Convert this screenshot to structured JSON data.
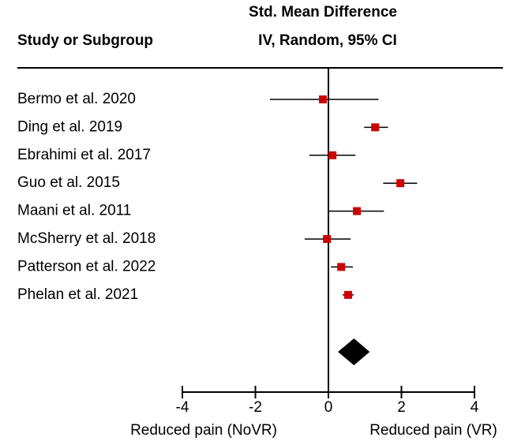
{
  "chart_data": {
    "type": "forest",
    "header_left": "Study or Subgroup",
    "header_right_1": "Std. Mean Difference",
    "header_right_2": "IV, Random, 95% CI",
    "categories": [
      "Bermo et al. 2020",
      "Ding et al. 2019",
      "Ebrahimi et al. 2017",
      "Guo et al. 2015",
      "Maani et al. 2011",
      "McSherry et al. 2018",
      "Patterson et al. 2022",
      "Phelan et al. 2021"
    ],
    "values": [
      -0.15,
      1.28,
      0.11,
      1.97,
      0.78,
      -0.04,
      0.35,
      0.54
    ],
    "ci_low": [
      -1.6,
      0.98,
      -0.52,
      1.5,
      0.02,
      -0.65,
      0.07,
      0.39
    ],
    "ci_high": [
      1.37,
      1.63,
      0.74,
      2.43,
      1.52,
      0.61,
      0.67,
      0.69
    ],
    "pooled": {
      "value": 0.7,
      "ci_low": 0.26,
      "ci_high": 1.13
    },
    "color": "#cc0000",
    "pooled_color": "#000000",
    "xlim": [
      -4,
      4
    ],
    "xticks": [
      -4,
      -2,
      0,
      2,
      4
    ],
    "xlabel_left": "Reduced pain (NoVR)",
    "xlabel_right": "Reduced pain (VR)"
  }
}
